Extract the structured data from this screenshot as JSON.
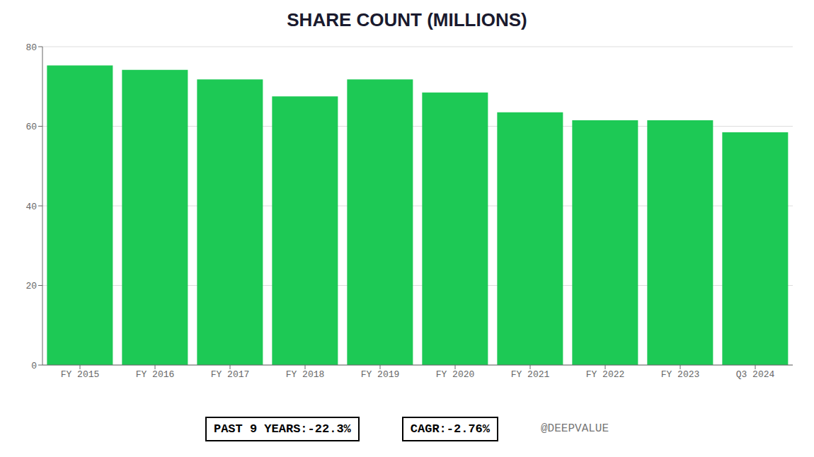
{
  "chart_data": {
    "type": "bar",
    "title": "SHARE COUNT (MILLIONS)",
    "categories": [
      "FY 2015",
      "FY 2016",
      "FY 2017",
      "FY 2018",
      "FY 2019",
      "FY 2020",
      "FY 2021",
      "FY 2022",
      "FY 2023",
      "Q3 2024"
    ],
    "values": [
      75.3,
      74.2,
      71.8,
      67.5,
      71.8,
      68.5,
      63.5,
      61.5,
      61.5,
      58.5
    ],
    "color": "#1DC955",
    "ylim": [
      0,
      80
    ],
    "yticks": [
      0,
      20,
      40,
      60,
      80
    ],
    "grid": true,
    "annotations": [
      "PAST 9 YEARS:-22.3%",
      "CAGR:-2.76%",
      "@DEEPVALUE"
    ]
  }
}
